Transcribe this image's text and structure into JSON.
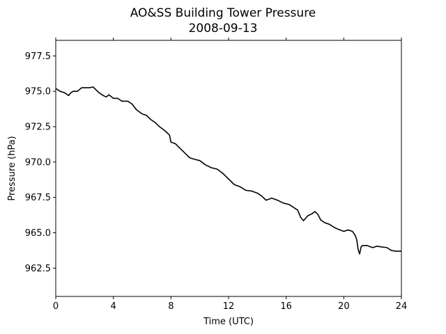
{
  "chart_data": {
    "type": "line",
    "title": "AO&SS Building Tower Pressure",
    "subtitle": "2008-09-13",
    "xlabel": "Time (UTC)",
    "ylabel": "Pressure (hPa)",
    "xlim": [
      0,
      24
    ],
    "ylim": [
      960.5,
      978.6
    ],
    "xticks": [
      0,
      4,
      8,
      12,
      16,
      20,
      24
    ],
    "yticks": [
      962.5,
      965.0,
      967.5,
      970.0,
      972.5,
      975.0,
      977.5
    ],
    "grid": false,
    "line_color": "#000000",
    "series": [
      {
        "x": [
          0,
          0.3,
          0.6,
          0.9,
          1.0,
          1.2,
          1.5,
          1.8,
          2.0,
          2.3,
          2.6,
          2.8,
          3.0,
          3.3,
          3.5,
          3.7,
          4.0,
          4.3,
          4.6,
          5.0,
          5.3,
          5.6,
          6.0,
          6.3,
          6.6,
          6.9,
          7.2,
          7.6,
          7.9,
          8.0,
          8.3,
          8.6,
          9.0,
          9.3,
          9.6,
          10.0,
          10.4,
          10.8,
          11.2,
          11.6,
          12.0,
          12.4,
          12.8,
          13.2,
          13.6,
          14.0,
          14.3,
          14.6,
          15.0,
          15.4,
          15.8,
          16.2,
          16.5,
          16.8,
          17.0,
          17.2,
          17.5,
          17.8,
          18.0,
          18.2,
          18.4,
          18.7,
          19.0,
          19.3,
          19.6,
          20.0,
          20.3,
          20.6,
          20.8,
          20.9,
          21.0,
          21.1,
          21.2,
          21.3,
          21.6,
          22.0,
          22.3,
          22.6,
          23.0,
          23.3,
          23.6,
          24.0
        ],
        "y": [
          975.2,
          975.0,
          974.9,
          974.7,
          974.85,
          975.0,
          975.0,
          975.25,
          975.25,
          975.25,
          975.3,
          975.1,
          974.9,
          974.7,
          974.6,
          974.75,
          974.5,
          974.5,
          974.3,
          974.3,
          974.1,
          973.7,
          973.4,
          973.3,
          973.0,
          972.8,
          972.5,
          972.2,
          971.9,
          971.4,
          971.3,
          971.0,
          970.6,
          970.3,
          970.2,
          970.1,
          969.8,
          969.6,
          969.5,
          969.2,
          968.8,
          968.4,
          968.25,
          968.0,
          967.95,
          967.8,
          967.6,
          967.3,
          967.45,
          967.3,
          967.1,
          967.0,
          966.8,
          966.6,
          966.1,
          965.85,
          966.2,
          966.35,
          966.5,
          966.3,
          965.9,
          965.7,
          965.6,
          965.4,
          965.25,
          965.1,
          965.2,
          965.1,
          964.8,
          964.5,
          963.8,
          963.5,
          964.0,
          964.1,
          964.1,
          963.95,
          964.05,
          964.0,
          963.95,
          963.75,
          963.7,
          963.7
        ]
      }
    ]
  }
}
